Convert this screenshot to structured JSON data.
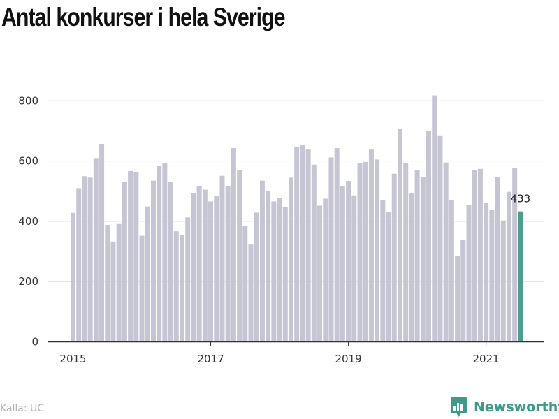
{
  "title": "Antal konkurser i hela Sverige",
  "source": "Källa: UC",
  "brand": {
    "name": "Newsworthy",
    "icon": "bar-chart-icon"
  },
  "colors": {
    "bar": "#c6c5d3",
    "highlight": "#4e9e8e",
    "axis": "#333333",
    "grid": "#dddddd",
    "brand": "#3f9a8a"
  },
  "chart_data": {
    "type": "bar",
    "title": "Antal konkurser i hela Sverige",
    "xlabel": "",
    "ylabel": "",
    "ylim": [
      0,
      860
    ],
    "yticks": [
      0,
      200,
      400,
      600,
      800
    ],
    "xtick_labels": [
      "2015",
      "2017",
      "2019",
      "2021"
    ],
    "start": "2015-01",
    "frequency": "monthly",
    "grid": true,
    "legend": "none",
    "highlight_last": true,
    "last_value_label": "433",
    "values": [
      428,
      510,
      550,
      545,
      610,
      657,
      388,
      333,
      391,
      532,
      567,
      562,
      352,
      449,
      535,
      583,
      592,
      530,
      367,
      354,
      413,
      494,
      518,
      505,
      466,
      483,
      551,
      516,
      643,
      571,
      386,
      323,
      429,
      535,
      502,
      466,
      478,
      447,
      545,
      648,
      652,
      638,
      588,
      452,
      475,
      612,
      643,
      516,
      534,
      486,
      592,
      597,
      638,
      605,
      471,
      431,
      558,
      706,
      592,
      493,
      571,
      548,
      700,
      818,
      683,
      595,
      471,
      284,
      339,
      454,
      570,
      574,
      460,
      437,
      546,
      403,
      498,
      577,
      433
    ]
  }
}
